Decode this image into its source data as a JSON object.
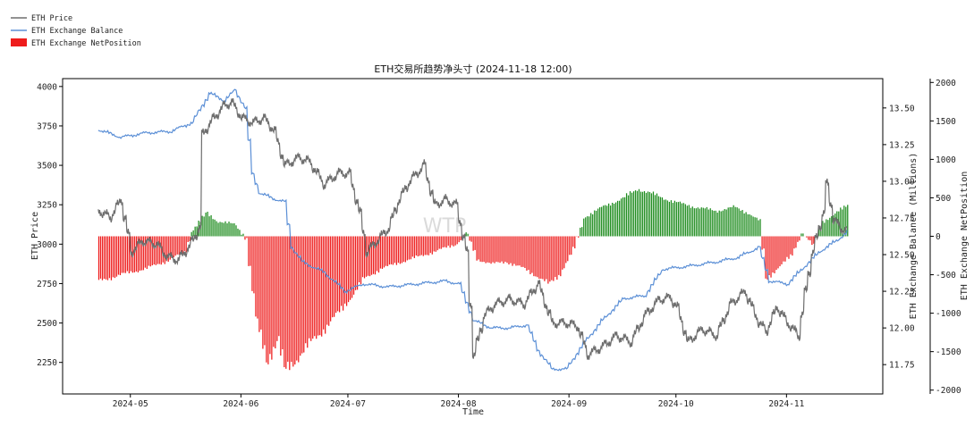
{
  "chart_data": {
    "type": "line",
    "title": "ETH交易所趋势净头寸 (2024-11-18 12:00)",
    "xlabel": "Time",
    "ylabel_left": "ETH Price",
    "ylabel_right1": "ETH Exchange Balance (Millions)",
    "ylabel_right2": "ETH Exchange NetPosition",
    "watermark": "WTP",
    "legend_position": "top-left",
    "legend": [
      "ETH Price",
      "ETH Exchange Balance",
      "ETH Exchange NetPosition"
    ],
    "x_ticks": [
      "2024-05",
      "2024-06",
      "2024-07",
      "2024-08",
      "2024-09",
      "2024-10",
      "2024-11"
    ],
    "x_tick_dates": [
      "2024-05-01",
      "2024-06-01",
      "2024-07-01",
      "2024-08-01",
      "2024-09-01",
      "2024-10-01",
      "2024-11-01"
    ],
    "x_range": [
      "2024-04-12",
      "2024-11-28"
    ],
    "left_axis": {
      "range": [
        2050,
        4050
      ],
      "ticks": [
        2250,
        2500,
        2750,
        3000,
        3250,
        3500,
        3750,
        4000
      ]
    },
    "right_axis_1": {
      "range": [
        11.55,
        13.7
      ],
      "ticks": [
        11.75,
        12.0,
        12.25,
        12.5,
        12.75,
        13.0,
        13.25,
        13.5
      ]
    },
    "right_axis_2": {
      "range": [
        -2050,
        2050
      ],
      "ticks": [
        -2000,
        -1500,
        -1000,
        -500,
        0,
        500,
        1000,
        1500,
        2000
      ]
    },
    "colors": {
      "price": "#6e6e6e",
      "balance": "#5b8fd6",
      "positive": "#1e8c1e",
      "negative": "#ee1c1c"
    },
    "series": [
      {
        "name": "ETH Price",
        "axis": "left",
        "points": [
          [
            "2024-04-22",
            3210
          ],
          [
            "2024-04-25",
            3170
          ],
          [
            "2024-04-28",
            3280
          ],
          [
            "2024-05-01",
            2950
          ],
          [
            "2024-05-04",
            3020
          ],
          [
            "2024-05-08",
            3000
          ],
          [
            "2024-05-11",
            2920
          ],
          [
            "2024-05-14",
            2900
          ],
          [
            "2024-05-17",
            2980
          ],
          [
            "2024-05-20",
            3100
          ],
          [
            "2024-05-21",
            3700
          ],
          [
            "2024-05-24",
            3800
          ],
          [
            "2024-05-27",
            3880
          ],
          [
            "2024-05-29",
            3900
          ],
          [
            "2024-06-01",
            3800
          ],
          [
            "2024-06-04",
            3770
          ],
          [
            "2024-06-07",
            3800
          ],
          [
            "2024-06-10",
            3720
          ],
          [
            "2024-06-13",
            3500
          ],
          [
            "2024-06-17",
            3550
          ],
          [
            "2024-06-20",
            3520
          ],
          [
            "2024-06-24",
            3380
          ],
          [
            "2024-06-28",
            3450
          ],
          [
            "2024-07-01",
            3450
          ],
          [
            "2024-07-04",
            3200
          ],
          [
            "2024-07-06",
            2950
          ],
          [
            "2024-07-08",
            3000
          ],
          [
            "2024-07-12",
            3100
          ],
          [
            "2024-07-15",
            3280
          ],
          [
            "2024-07-18",
            3400
          ],
          [
            "2024-07-22",
            3500
          ],
          [
            "2024-07-25",
            3250
          ],
          [
            "2024-07-28",
            3280
          ],
          [
            "2024-07-31",
            3250
          ],
          [
            "2024-08-03",
            2950
          ],
          [
            "2024-08-05",
            2300
          ],
          [
            "2024-08-08",
            2550
          ],
          [
            "2024-08-11",
            2620
          ],
          [
            "2024-08-15",
            2650
          ],
          [
            "2024-08-19",
            2620
          ],
          [
            "2024-08-23",
            2750
          ],
          [
            "2024-08-27",
            2500
          ],
          [
            "2024-08-31",
            2500
          ],
          [
            "2024-09-03",
            2480
          ],
          [
            "2024-09-06",
            2300
          ],
          [
            "2024-09-10",
            2350
          ],
          [
            "2024-09-14",
            2420
          ],
          [
            "2024-09-18",
            2380
          ],
          [
            "2024-09-22",
            2550
          ],
          [
            "2024-09-26",
            2650
          ],
          [
            "2024-09-29",
            2660
          ],
          [
            "2024-10-01",
            2600
          ],
          [
            "2024-10-04",
            2380
          ],
          [
            "2024-10-08",
            2460
          ],
          [
            "2024-10-12",
            2420
          ],
          [
            "2024-10-16",
            2620
          ],
          [
            "2024-10-20",
            2700
          ],
          [
            "2024-10-24",
            2500
          ],
          [
            "2024-10-26",
            2450
          ],
          [
            "2024-10-29",
            2600
          ],
          [
            "2024-11-01",
            2500
          ],
          [
            "2024-11-04",
            2420
          ],
          [
            "2024-11-06",
            2700
          ],
          [
            "2024-11-08",
            2950
          ],
          [
            "2024-11-11",
            3200
          ],
          [
            "2024-11-12",
            3380
          ],
          [
            "2024-11-14",
            3150
          ],
          [
            "2024-11-16",
            3100
          ],
          [
            "2024-11-18",
            3080
          ]
        ]
      },
      {
        "name": "ETH Exchange Balance",
        "axis": "right1",
        "points": [
          [
            "2024-04-22",
            13.35
          ],
          [
            "2024-04-28",
            13.3
          ],
          [
            "2024-05-05",
            13.33
          ],
          [
            "2024-05-12",
            13.34
          ],
          [
            "2024-05-18",
            13.4
          ],
          [
            "2024-05-23",
            13.6
          ],
          [
            "2024-05-27",
            13.55
          ],
          [
            "2024-05-30",
            13.62
          ],
          [
            "2024-06-02",
            13.5
          ],
          [
            "2024-06-04",
            13.05
          ],
          [
            "2024-06-06",
            12.92
          ],
          [
            "2024-06-10",
            12.88
          ],
          [
            "2024-06-13",
            12.86
          ],
          [
            "2024-06-15",
            12.55
          ],
          [
            "2024-06-18",
            12.45
          ],
          [
            "2024-06-24",
            12.38
          ],
          [
            "2024-06-30",
            12.25
          ],
          [
            "2024-07-05",
            12.3
          ],
          [
            "2024-07-12",
            12.28
          ],
          [
            "2024-07-20",
            12.3
          ],
          [
            "2024-07-28",
            12.32
          ],
          [
            "2024-08-01",
            12.3
          ],
          [
            "2024-08-05",
            12.05
          ],
          [
            "2024-08-10",
            12.0
          ],
          [
            "2024-08-15",
            12.0
          ],
          [
            "2024-08-20",
            12.02
          ],
          [
            "2024-08-23",
            11.85
          ],
          [
            "2024-08-27",
            11.72
          ],
          [
            "2024-08-31",
            11.72
          ],
          [
            "2024-09-05",
            11.9
          ],
          [
            "2024-09-10",
            12.05
          ],
          [
            "2024-09-16",
            12.2
          ],
          [
            "2024-09-22",
            12.22
          ],
          [
            "2024-09-27",
            12.4
          ],
          [
            "2024-10-04",
            12.42
          ],
          [
            "2024-10-12",
            12.45
          ],
          [
            "2024-10-18",
            12.48
          ],
          [
            "2024-10-24",
            12.55
          ],
          [
            "2024-10-27",
            12.32
          ],
          [
            "2024-11-01",
            12.3
          ],
          [
            "2024-11-05",
            12.4
          ],
          [
            "2024-11-10",
            12.52
          ],
          [
            "2024-11-15",
            12.6
          ],
          [
            "2024-11-18",
            12.66
          ]
        ]
      },
      {
        "name": "ETH Exchange NetPosition",
        "axis": "right2",
        "type": "bar",
        "points": [
          [
            "2024-04-22",
            -580
          ],
          [
            "2024-04-28",
            -500
          ],
          [
            "2024-05-05",
            -420
          ],
          [
            "2024-05-11",
            -320
          ],
          [
            "2024-05-16",
            -200
          ],
          [
            "2024-05-18",
            80
          ],
          [
            "2024-05-22",
            300
          ],
          [
            "2024-05-25",
            200
          ],
          [
            "2024-05-30",
            150
          ],
          [
            "2024-06-02",
            -20
          ],
          [
            "2024-06-05",
            -1100
          ],
          [
            "2024-06-08",
            -1600
          ],
          [
            "2024-06-11",
            -1350
          ],
          [
            "2024-06-13",
            -1750
          ],
          [
            "2024-06-17",
            -1550
          ],
          [
            "2024-06-22",
            -1300
          ],
          [
            "2024-06-28",
            -1000
          ],
          [
            "2024-07-02",
            -760
          ],
          [
            "2024-07-05",
            -560
          ],
          [
            "2024-07-10",
            -420
          ],
          [
            "2024-07-18",
            -300
          ],
          [
            "2024-07-25",
            -200
          ],
          [
            "2024-07-31",
            -100
          ],
          [
            "2024-08-03",
            30
          ],
          [
            "2024-08-06",
            -300
          ],
          [
            "2024-08-10",
            -360
          ],
          [
            "2024-08-14",
            -330
          ],
          [
            "2024-08-19",
            -420
          ],
          [
            "2024-08-22",
            -500
          ],
          [
            "2024-08-26",
            -620
          ],
          [
            "2024-08-29",
            -500
          ],
          [
            "2024-09-02",
            -160
          ],
          [
            "2024-09-05",
            250
          ],
          [
            "2024-09-10",
            380
          ],
          [
            "2024-09-16",
            500
          ],
          [
            "2024-09-20",
            620
          ],
          [
            "2024-09-24",
            550
          ],
          [
            "2024-09-30",
            450
          ],
          [
            "2024-10-06",
            380
          ],
          [
            "2024-10-12",
            330
          ],
          [
            "2024-10-17",
            380
          ],
          [
            "2024-10-21",
            300
          ],
          [
            "2024-10-24",
            200
          ],
          [
            "2024-10-26",
            -550
          ],
          [
            "2024-10-30",
            -380
          ],
          [
            "2024-11-02",
            -250
          ],
          [
            "2024-11-05",
            50
          ],
          [
            "2024-11-08",
            -120
          ],
          [
            "2024-11-11",
            200
          ],
          [
            "2024-11-14",
            280
          ],
          [
            "2024-11-18",
            420
          ]
        ]
      }
    ]
  }
}
